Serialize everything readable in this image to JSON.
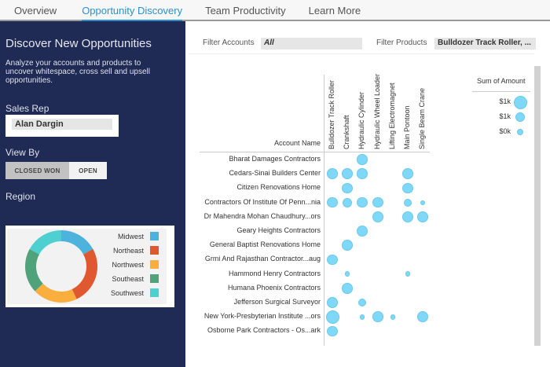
{
  "nav": {
    "tabs": [
      {
        "label": "Overview"
      },
      {
        "label": "Opportunity Discovery",
        "active": true
      },
      {
        "label": "Team Productivity"
      },
      {
        "label": "Learn More"
      }
    ]
  },
  "sidebar": {
    "title": "Discover New Opportunities",
    "description": "Analyze your accounts and products to uncover whitespace, cross sell and upsell opportunities.",
    "sales_rep_label": "Sales Rep",
    "sales_rep_value": "Alan Dargin",
    "view_by_label": "View By",
    "view_by_options": [
      "CLOSED WON",
      "OPEN"
    ],
    "view_by_selected": "CLOSED WON",
    "region_label": "Region"
  },
  "filters": {
    "accounts_label": "Filter Accounts",
    "accounts_value": "All",
    "products_label": "Filter Products",
    "products_value": "Bulldozer Track Roller, ..."
  },
  "colors": {
    "nav_active": "#2a8fd0",
    "sidebar_bg": "#1f2a55",
    "bubble": "#7fd8f7"
  },
  "chart_data": [
    {
      "type": "pie",
      "title": "Region",
      "donut": true,
      "categories": [
        "Midwest",
        "Northeast",
        "Northwest",
        "Southeast",
        "Southwest"
      ],
      "values": [
        17,
        26,
        20,
        20,
        17
      ],
      "colors": [
        "#4db3dc",
        "#e0582f",
        "#f9ae3d",
        "#4fa27a",
        "#4fd0d0"
      ],
      "legend": "right"
    },
    {
      "type": "scatter",
      "subtype": "bubble-matrix",
      "row_header": "Account Name",
      "columns": [
        "Bulldozer Track Roller",
        "Crankshaft",
        "Hydraulic Cylinder",
        "Hydraulic Wheel Loader",
        "Lifting Electromagnet",
        "Main Pontoon",
        "Single Beam Crane"
      ],
      "rows": [
        {
          "name": "Bharat Damages Contractors",
          "values": [
            0,
            0,
            0.8,
            0,
            0,
            0,
            0
          ]
        },
        {
          "name": "Cedars-Sinai Builders Center",
          "values": [
            0.8,
            0.8,
            0.8,
            0,
            0,
            0.8,
            0
          ]
        },
        {
          "name": "Citizen Renovations Home",
          "values": [
            0,
            0.8,
            0,
            0,
            0,
            0.8,
            0
          ]
        },
        {
          "name": "Contractors Of Institute Of Penn...nia",
          "values": [
            0.8,
            0.7,
            0.8,
            0.8,
            0,
            0.6,
            0.35
          ]
        },
        {
          "name": "Dr Mahendra Mohan Chaudhury...ors",
          "values": [
            0,
            0,
            0,
            0.8,
            0,
            0.8,
            0.8
          ]
        },
        {
          "name": "Geary Heights Contractors",
          "values": [
            0,
            0,
            0.8,
            0,
            0,
            0,
            0
          ]
        },
        {
          "name": "General Baptist Renovations Home",
          "values": [
            0,
            0.8,
            0,
            0,
            0,
            0,
            0
          ]
        },
        {
          "name": "Grmi And Rajasthan Contractor...aug",
          "values": [
            0.8,
            0,
            0,
            0,
            0,
            0,
            0
          ]
        },
        {
          "name": "Hammond Henry Contractors",
          "values": [
            0,
            0.4,
            0,
            0,
            0,
            0.4,
            0
          ]
        },
        {
          "name": "Humana Phoenix Contractors",
          "values": [
            0,
            0.8,
            0,
            0,
            0,
            0,
            0
          ]
        },
        {
          "name": "Jefferson Surgical Surveyor",
          "values": [
            0.8,
            0,
            0.6,
            0,
            0,
            0,
            0
          ]
        },
        {
          "name": "New York-Presbyterian Institute ...ors",
          "values": [
            1.0,
            0,
            0.4,
            0.8,
            0.4,
            0,
            0.8
          ]
        },
        {
          "name": "Osborne Park Contractors - Os...ark",
          "values": [
            0.8,
            0,
            0,
            0,
            0,
            0,
            0
          ]
        }
      ],
      "legend_title": "Sum of Amount",
      "legend": [
        {
          "label": "$1k",
          "size": 1.0
        },
        {
          "label": "$1k",
          "size": 0.7
        },
        {
          "label": "$0k",
          "size": 0.45
        }
      ]
    }
  ]
}
